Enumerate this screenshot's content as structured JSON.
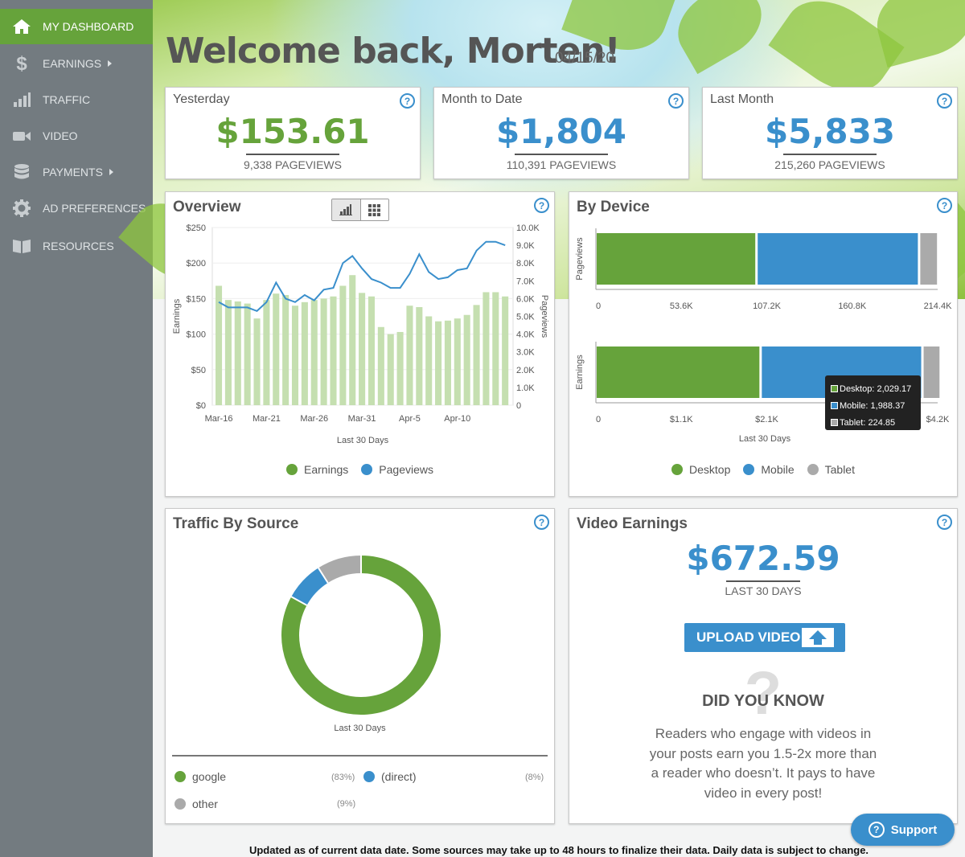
{
  "sidebar": {
    "items": [
      {
        "label": "MY DASHBOARD",
        "icon": "home-icon"
      },
      {
        "label": "EARNINGS",
        "icon": "dollar-icon"
      },
      {
        "label": "TRAFFIC",
        "icon": "bar-chart-icon"
      },
      {
        "label": "VIDEO",
        "icon": "video-camera-icon"
      },
      {
        "label": "PAYMENTS",
        "icon": "database-icon"
      },
      {
        "label": "AD PREFERENCES",
        "icon": "gear-icon"
      },
      {
        "label": "RESOURCES",
        "icon": "book-icon"
      }
    ]
  },
  "header": {
    "welcome": "Welcome back, Morten!",
    "date": "04/15/20"
  },
  "stats": [
    {
      "title": "Yesterday",
      "value": "$153.61",
      "sub": "9,338 PAGEVIEWS",
      "color": "#66a33b"
    },
    {
      "title": "Month to Date",
      "value": "$1,804",
      "sub": "110,391 PAGEVIEWS",
      "color": "#3a8fcc"
    },
    {
      "title": "Last Month",
      "value": "$5,833",
      "sub": "215,260 PAGEVIEWS",
      "color": "#3a8fcc"
    }
  ],
  "help_label": "?",
  "colors": {
    "green": "#66a33b",
    "blue": "#3a8fcc",
    "gray": "#aaaaaa",
    "bar_green": "#c5dfb0",
    "line_blue": "#3a8fcc"
  },
  "overview": {
    "title": "Overview",
    "legend": [
      "Earnings",
      "Pageviews"
    ]
  },
  "device": {
    "title": "By Device",
    "legend": [
      "Desktop",
      "Mobile",
      "Tablet"
    ],
    "tooltip": [
      "Desktop: 2,029.17",
      "Mobile: 1,988.37",
      "Tablet: 224.85"
    ]
  },
  "traffic": {
    "title": "Traffic By Source",
    "caption": "Last 30 Days",
    "sources": [
      {
        "label": "google",
        "pct": "(83%)"
      },
      {
        "label": "(direct)",
        "pct": "(8%)"
      },
      {
        "label": "other",
        "pct": "(9%)"
      }
    ]
  },
  "video": {
    "title": "Video Earnings",
    "value": "$672.59",
    "sub": "LAST 30 DAYS",
    "upload": "UPLOAD VIDEO",
    "dyk_title": "DID YOU KNOW",
    "dyk_mark": "?",
    "dyk_text": "Readers who engage with videos in your posts earn you 1.5-2x more than a reader who doesn’t. It pays to have video in every post!"
  },
  "support": "Support",
  "footer": "Updated as of current data date. Some sources may take up to 48 hours to finalize their data. Daily data is subject to change.",
  "chart_data": [
    {
      "type": "bar",
      "title": "Overview",
      "xlabel": "Last 30 Days",
      "ylabel": "Earnings",
      "y2label": "Pageviews",
      "ylim": [
        0,
        250
      ],
      "y2lim": [
        0,
        10000
      ],
      "yticks": [
        "$0",
        "$50",
        "$100",
        "$150",
        "$200",
        "$250"
      ],
      "y2ticks": [
        "0",
        "1.0K",
        "2.0K",
        "3.0K",
        "4.0K",
        "5.0K",
        "6.0K",
        "7.0K",
        "8.0K",
        "9.0K",
        "10.0K"
      ],
      "xticks": [
        "Mar-16",
        "Mar-21",
        "Mar-26",
        "Mar-31",
        "Apr-5",
        "Apr-10"
      ],
      "series": [
        {
          "name": "Earnings",
          "kind": "bar",
          "values": [
            168,
            148,
            146,
            143,
            122,
            148,
            157,
            155,
            140,
            145,
            148,
            150,
            153,
            168,
            183,
            158,
            153,
            110,
            100,
            103,
            140,
            138,
            125,
            118,
            119,
            122,
            127,
            141,
            159,
            159,
            153
          ]
        },
        {
          "name": "Pageviews",
          "kind": "line",
          "values": [
            5800,
            5500,
            5500,
            5500,
            5300,
            5800,
            6900,
            6000,
            5800,
            6200,
            5900,
            6500,
            6600,
            8000,
            8400,
            7700,
            7100,
            6900,
            6600,
            6600,
            7400,
            8500,
            7500,
            7100,
            7200,
            7600,
            7700,
            8700,
            9200,
            9200,
            9000
          ]
        }
      ],
      "legend": "bottom"
    },
    {
      "type": "bar",
      "title": "By Device",
      "orientation": "horizontal",
      "stacked": true,
      "xlabel": "Last 30 Days",
      "categories": [
        "Pageviews",
        "Earnings"
      ],
      "axes": [
        {
          "xlim": [
            0,
            214400
          ],
          "xticks": [
            "0",
            "53.6K",
            "107.2K",
            "160.8K",
            "214.4K"
          ]
        },
        {
          "xlim": [
            0,
            4200
          ],
          "xticks": [
            "0",
            "$1.1K",
            "$2.1K",
            "$3.2K",
            "$4.2K"
          ]
        }
      ],
      "series": [
        {
          "name": "Desktop",
          "values": [
            101000,
            2029.17
          ]
        },
        {
          "name": "Mobile",
          "values": [
            102000,
            1988.37
          ]
        },
        {
          "name": "Tablet",
          "values": [
            12000,
            224.85
          ]
        }
      ],
      "legend": "bottom"
    },
    {
      "type": "pie",
      "title": "Traffic By Source",
      "donut": true,
      "categories": [
        "google",
        "(direct)",
        "other"
      ],
      "values": [
        83,
        8,
        9
      ],
      "legend": "bottom"
    }
  ]
}
